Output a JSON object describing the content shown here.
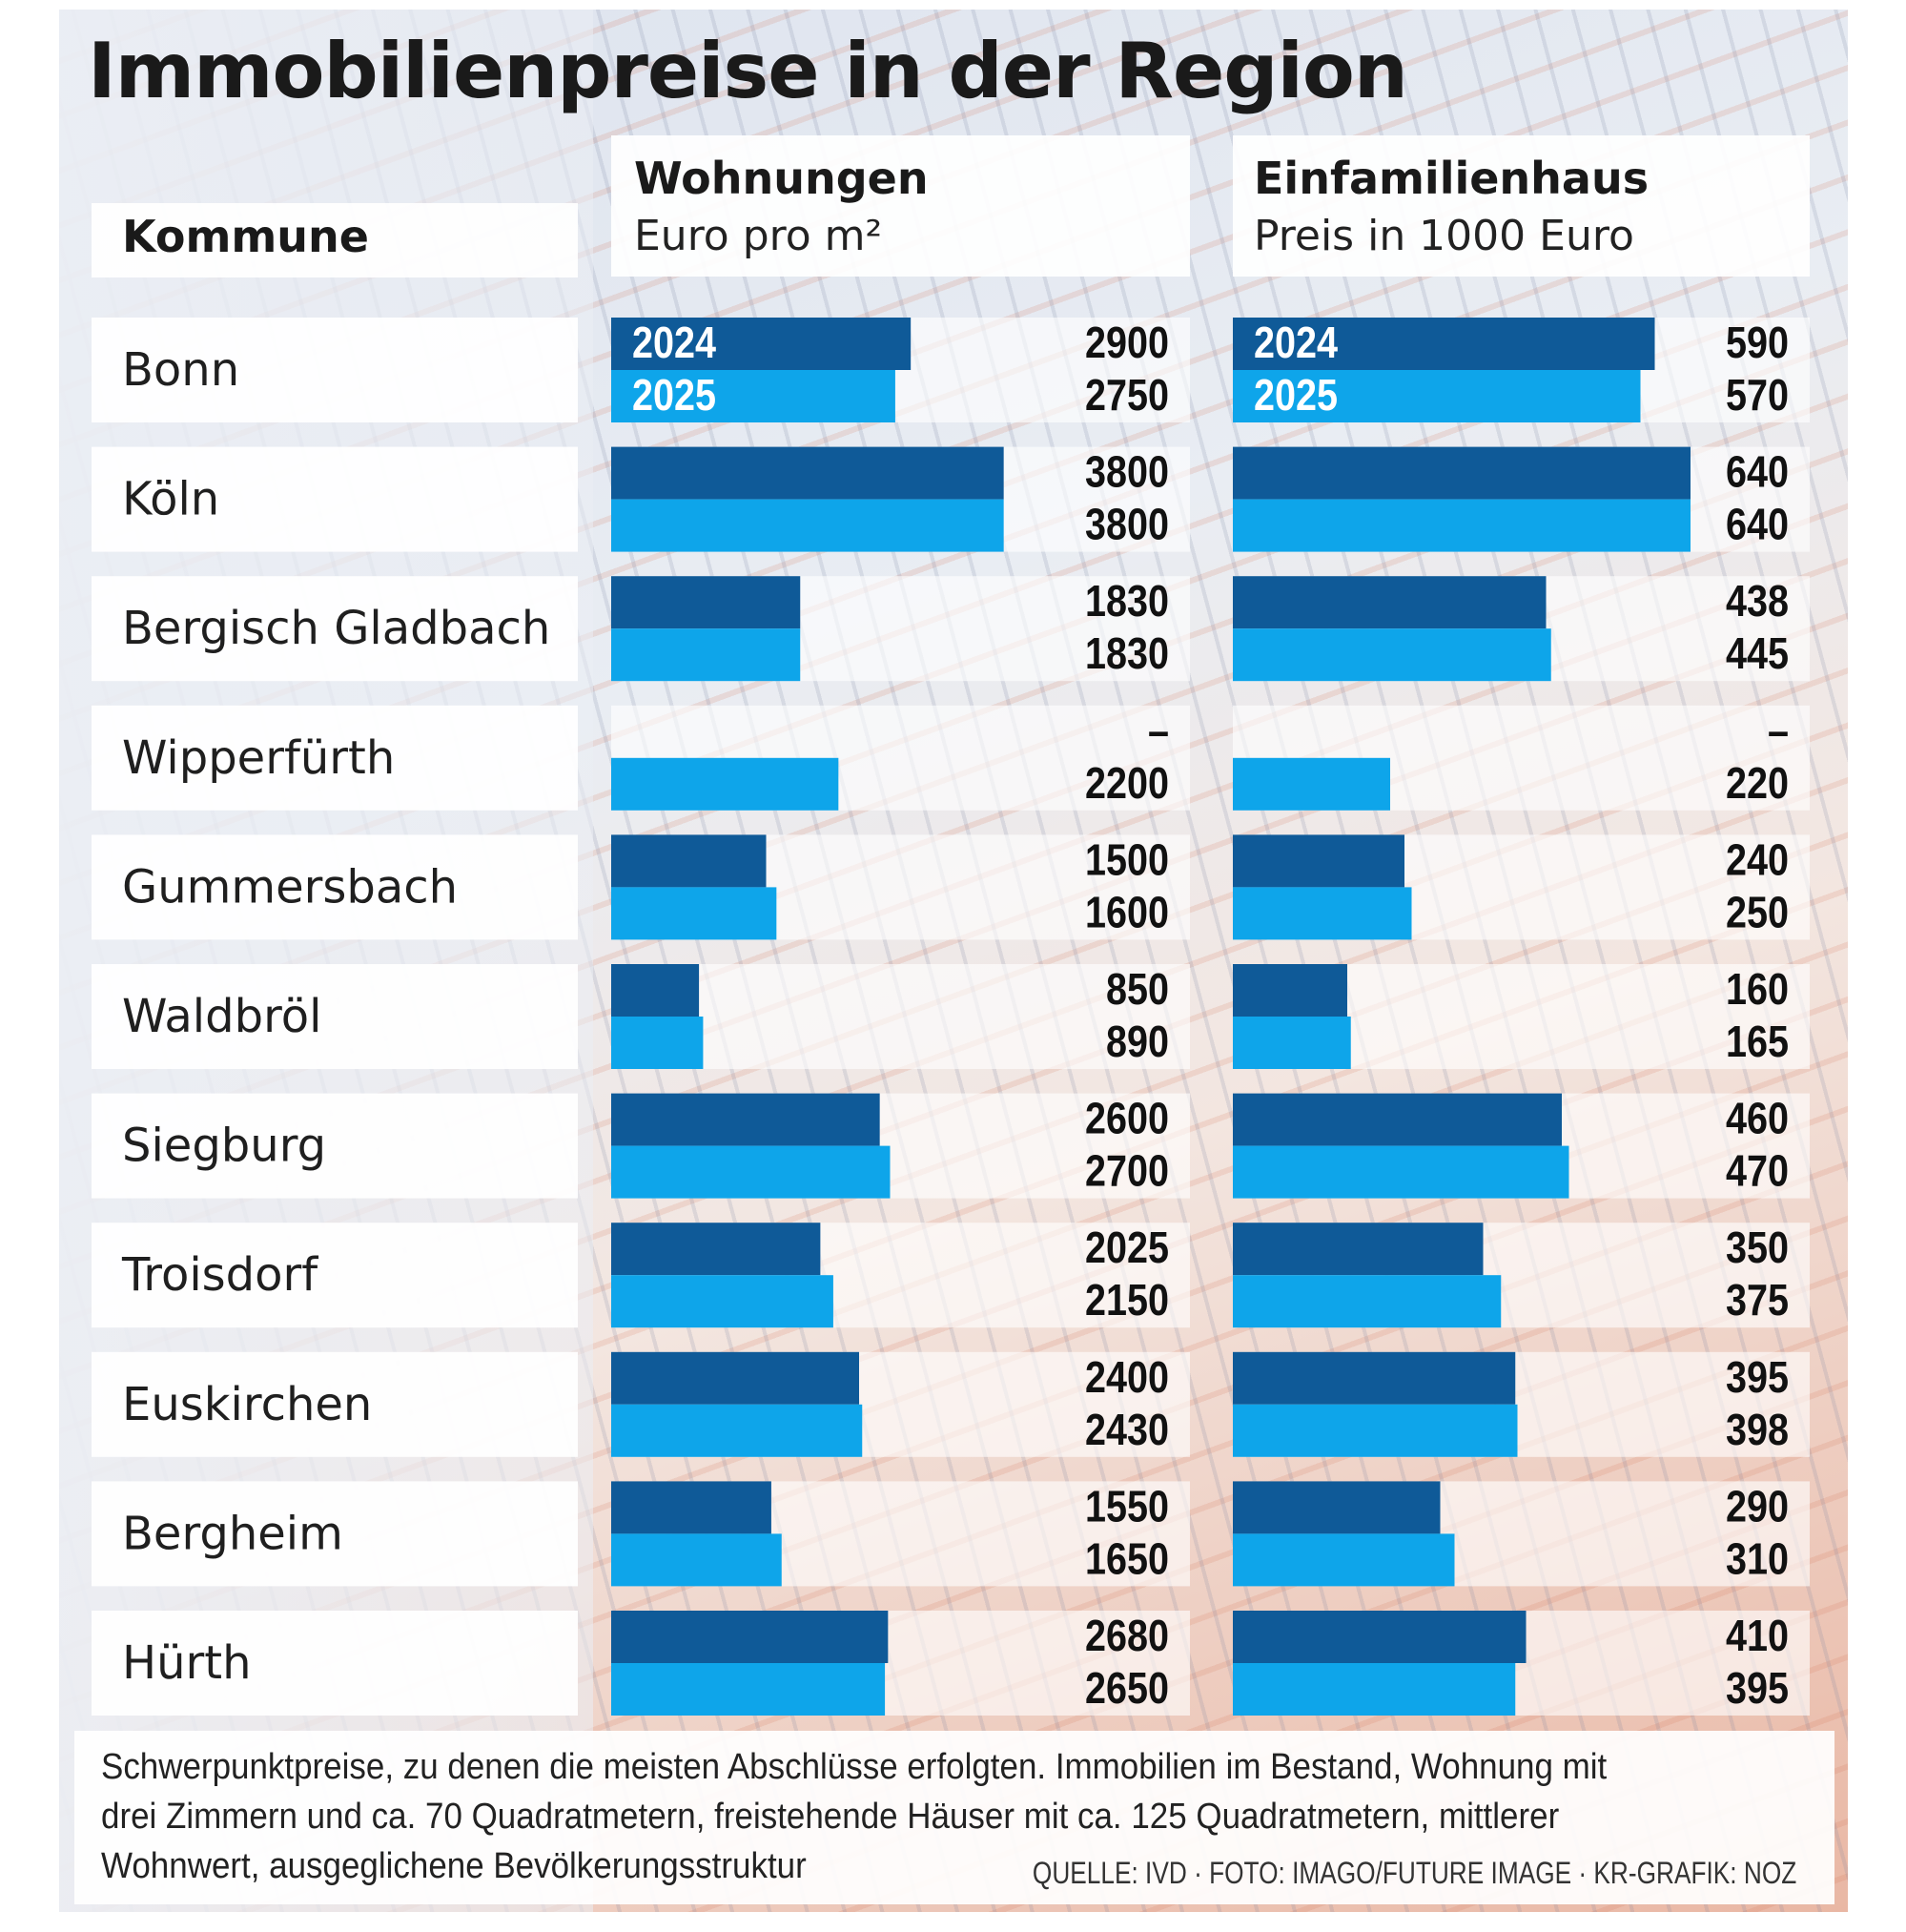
{
  "title": "Immobilienpreise in der Region",
  "header": {
    "kommune": "Kommune",
    "wohnungen_title": "Wohnungen",
    "wohnungen_unit": "Euro pro m²",
    "haus_title": "Einfamilienhaus",
    "haus_unit": "Preis in 1000 Euro"
  },
  "colors": {
    "y2024": "#0f5a98",
    "y2025": "#0ea5ea"
  },
  "chart_data": {
    "type": "bar",
    "orientation": "horizontal",
    "categories": [
      "Bonn",
      "Köln",
      "Bergisch Gladbach",
      "Wipperfürth",
      "Gummersbach",
      "Waldbröl",
      "Siegburg",
      "Troisdorf",
      "Euskirchen",
      "Bergheim",
      "Hürth"
    ],
    "panels": [
      {
        "name": "Wohnungen",
        "unit": "Euro pro m²",
        "xlim": [
          0,
          4200
        ],
        "series": [
          {
            "name": "2024",
            "values": [
              2900,
              3800,
              1830,
              null,
              1500,
              850,
              2600,
              2025,
              2400,
              1550,
              2680
            ],
            "labels": [
              "2900",
              "3800",
              "1830",
              "–",
              "1500",
              "850",
              "2600",
              "2025",
              "2400",
              "1550",
              "2680"
            ]
          },
          {
            "name": "2025",
            "values": [
              2750,
              3800,
              1830,
              2200,
              1600,
              890,
              2700,
              2150,
              2430,
              1650,
              2650
            ],
            "labels": [
              "2750",
              "3800",
              "1830",
              "2200",
              "1600",
              "890",
              "2700",
              "2150",
              "2430",
              "1650",
              "2650"
            ]
          }
        ]
      },
      {
        "name": "Einfamilienhaus",
        "unit": "Preis in 1000 Euro",
        "xlim": [
          0,
          640
        ],
        "series": [
          {
            "name": "2024",
            "values": [
              590,
              640,
              438,
              null,
              240,
              160,
              460,
              350,
              395,
              290,
              410
            ],
            "labels": [
              "590",
              "640",
              "438",
              "–",
              "240",
              "160",
              "460",
              "350",
              "395",
              "290",
              "410"
            ]
          },
          {
            "name": "2025",
            "values": [
              570,
              640,
              445,
              220,
              250,
              165,
              470,
              375,
              398,
              310,
              395
            ],
            "labels": [
              "570",
              "640",
              "445",
              "220",
              "250",
              "165",
              "470",
              "375",
              "398",
              "310",
              "395"
            ]
          }
        ]
      }
    ]
  },
  "footnote": "Schwerpunktpreise, zu denen die meisten Abschlüsse erfolgten. Immobilien im Bestand, Wohnung mit drei Zimmern und ca. 70 Quadratmetern, freistehende Häuser mit ca. 125 Quadratmetern, mittlerer Wohnwert, ausgeglichene Bevölkerungsstruktur",
  "source": "QUELLE: IVD · FOTO: IMAGO/FUTURE IMAGE · KR-GRAFIK: NOZ"
}
